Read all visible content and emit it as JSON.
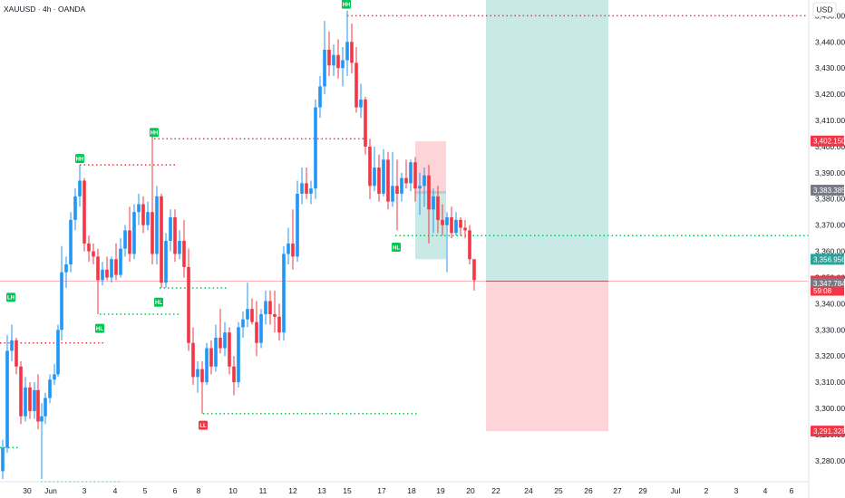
{
  "header": {
    "symbol_title": "XAUUSD · 4h · OANDA"
  },
  "currency_button": "USD",
  "chart_data": {
    "type": "candlestick",
    "title": "XAUUSD · 4h · OANDA",
    "y_axis_unit": "USD",
    "ylim": [
      3272,
      3456
    ],
    "xlim": [
      0,
      932
    ],
    "grid": false,
    "y_ticks": [
      {
        "value": 3280,
        "label": "3,280.000"
      },
      {
        "value": 3290,
        "label": "3,290.000"
      },
      {
        "value": 3300,
        "label": "3,300.000"
      },
      {
        "value": 3310,
        "label": "3,310.000"
      },
      {
        "value": 3320,
        "label": "3,320.000"
      },
      {
        "value": 3330,
        "label": "3,330.000"
      },
      {
        "value": 3340,
        "label": "3,340.000"
      },
      {
        "value": 3350,
        "label": "3,350.000"
      },
      {
        "value": 3360,
        "label": "3,360.000"
      },
      {
        "value": 3370,
        "label": "3,370.000"
      },
      {
        "value": 3380,
        "label": "3,380.000"
      },
      {
        "value": 3390,
        "label": "3,390.000"
      },
      {
        "value": 3400,
        "label": "3,400.000"
      },
      {
        "value": 3410,
        "label": "3,410.000"
      },
      {
        "value": 3420,
        "label": "3,420.000"
      },
      {
        "value": 3430,
        "label": "3,430.000"
      },
      {
        "value": 3440,
        "label": "3,440.000"
      },
      {
        "value": 3450,
        "label": "3,450.000"
      }
    ],
    "x_ticks": [
      {
        "x": 30,
        "label": "30"
      },
      {
        "x": 56,
        "label": "Jun"
      },
      {
        "x": 93,
        "label": "3"
      },
      {
        "x": 127,
        "label": "4"
      },
      {
        "x": 160,
        "label": "5"
      },
      {
        "x": 193,
        "label": "6"
      },
      {
        "x": 219,
        "label": "8"
      },
      {
        "x": 257,
        "label": "10"
      },
      {
        "x": 290,
        "label": "11"
      },
      {
        "x": 323,
        "label": "12"
      },
      {
        "x": 355,
        "label": "13"
      },
      {
        "x": 383,
        "label": "15"
      },
      {
        "x": 421,
        "label": "17"
      },
      {
        "x": 454,
        "label": "18"
      },
      {
        "x": 486,
        "label": "19"
      },
      {
        "x": 519,
        "label": "20"
      },
      {
        "x": 547,
        "label": "22"
      },
      {
        "x": 583,
        "label": "24"
      },
      {
        "x": 616,
        "label": "25"
      },
      {
        "x": 649,
        "label": "26"
      },
      {
        "x": 681,
        "label": "27"
      },
      {
        "x": 709,
        "label": "29"
      },
      {
        "x": 745,
        "label": "Jul"
      },
      {
        "x": 779,
        "label": "2"
      },
      {
        "x": 812,
        "label": "3"
      },
      {
        "x": 844,
        "label": "4"
      },
      {
        "x": 873,
        "label": "6"
      }
    ],
    "candles": [
      {
        "x": 3,
        "o": 3276,
        "h": 3288,
        "l": 3273,
        "c": 3285
      },
      {
        "x": 8,
        "o": 3285,
        "h": 3328,
        "l": 3283,
        "c": 3322
      },
      {
        "x": 13,
        "o": 3322,
        "h": 3332,
        "l": 3318,
        "c": 3326
      },
      {
        "x": 18,
        "o": 3326,
        "h": 3327,
        "l": 3313,
        "c": 3316
      },
      {
        "x": 23,
        "o": 3316,
        "h": 3318,
        "l": 3294,
        "c": 3297
      },
      {
        "x": 28,
        "o": 3297,
        "h": 3312,
        "l": 3295,
        "c": 3308
      },
      {
        "x": 33,
        "o": 3308,
        "h": 3310,
        "l": 3296,
        "c": 3299
      },
      {
        "x": 38,
        "o": 3299,
        "h": 3310,
        "l": 3296,
        "c": 3307
      },
      {
        "x": 42,
        "o": 3307,
        "h": 3313,
        "l": 3292,
        "c": 3295
      },
      {
        "x": 46,
        "o": 3295,
        "h": 3302,
        "l": 3273,
        "c": 3297
      },
      {
        "x": 50,
        "o": 3297,
        "h": 3306,
        "l": 3294,
        "c": 3304
      },
      {
        "x": 55,
        "o": 3304,
        "h": 3313,
        "l": 3302,
        "c": 3311
      },
      {
        "x": 60,
        "o": 3311,
        "h": 3317,
        "l": 3309,
        "c": 3313
      },
      {
        "x": 64,
        "o": 3313,
        "h": 3332,
        "l": 3312,
        "c": 3330
      },
      {
        "x": 68,
        "o": 3330,
        "h": 3362,
        "l": 3326,
        "c": 3352
      },
      {
        "x": 73,
        "o": 3352,
        "h": 3358,
        "l": 3346,
        "c": 3355
      },
      {
        "x": 78,
        "o": 3355,
        "h": 3375,
        "l": 3352,
        "c": 3372
      },
      {
        "x": 83,
        "o": 3372,
        "h": 3384,
        "l": 3368,
        "c": 3381
      },
      {
        "x": 88,
        "o": 3381,
        "h": 3393,
        "l": 3377,
        "c": 3387
      },
      {
        "x": 93,
        "o": 3387,
        "h": 3388,
        "l": 3360,
        "c": 3363
      },
      {
        "x": 98,
        "o": 3363,
        "h": 3366,
        "l": 3356,
        "c": 3360
      },
      {
        "x": 103,
        "o": 3360,
        "h": 3363,
        "l": 3355,
        "c": 3358
      },
      {
        "x": 108,
        "o": 3358,
        "h": 3361,
        "l": 3336,
        "c": 3349
      },
      {
        "x": 113,
        "o": 3349,
        "h": 3356,
        "l": 3347,
        "c": 3353
      },
      {
        "x": 118,
        "o": 3353,
        "h": 3358,
        "l": 3349,
        "c": 3350
      },
      {
        "x": 123,
        "o": 3350,
        "h": 3358,
        "l": 3348,
        "c": 3357
      },
      {
        "x": 128,
        "o": 3357,
        "h": 3363,
        "l": 3349,
        "c": 3351
      },
      {
        "x": 133,
        "o": 3351,
        "h": 3365,
        "l": 3350,
        "c": 3361
      },
      {
        "x": 138,
        "o": 3361,
        "h": 3370,
        "l": 3358,
        "c": 3368
      },
      {
        "x": 143,
        "o": 3368,
        "h": 3377,
        "l": 3356,
        "c": 3359
      },
      {
        "x": 148,
        "o": 3359,
        "h": 3378,
        "l": 3357,
        "c": 3375
      },
      {
        "x": 153,
        "o": 3375,
        "h": 3382,
        "l": 3370,
        "c": 3378
      },
      {
        "x": 158,
        "o": 3378,
        "h": 3381,
        "l": 3367,
        "c": 3370
      },
      {
        "x": 163,
        "o": 3370,
        "h": 3379,
        "l": 3368,
        "c": 3375
      },
      {
        "x": 168,
        "o": 3375,
        "h": 3404,
        "l": 3355,
        "c": 3359
      },
      {
        "x": 173,
        "o": 3359,
        "h": 3385,
        "l": 3355,
        "c": 3381
      },
      {
        "x": 178,
        "o": 3381,
        "h": 3382,
        "l": 3346,
        "c": 3348
      },
      {
        "x": 183,
        "o": 3348,
        "h": 3367,
        "l": 3346,
        "c": 3364
      },
      {
        "x": 188,
        "o": 3364,
        "h": 3376,
        "l": 3360,
        "c": 3373
      },
      {
        "x": 193,
        "o": 3373,
        "h": 3376,
        "l": 3356,
        "c": 3359
      },
      {
        "x": 198,
        "o": 3359,
        "h": 3368,
        "l": 3357,
        "c": 3364
      },
      {
        "x": 203,
        "o": 3364,
        "h": 3372,
        "l": 3350,
        "c": 3354
      },
      {
        "x": 208,
        "o": 3354,
        "h": 3361,
        "l": 3322,
        "c": 3325
      },
      {
        "x": 213,
        "o": 3325,
        "h": 3331,
        "l": 3309,
        "c": 3312
      },
      {
        "x": 218,
        "o": 3312,
        "h": 3318,
        "l": 3306,
        "c": 3315
      },
      {
        "x": 223,
        "o": 3315,
        "h": 3318,
        "l": 3298,
        "c": 3310
      },
      {
        "x": 228,
        "o": 3310,
        "h": 3325,
        "l": 3309,
        "c": 3323
      },
      {
        "x": 233,
        "o": 3323,
        "h": 3326,
        "l": 3313,
        "c": 3316
      },
      {
        "x": 238,
        "o": 3316,
        "h": 3332,
        "l": 3314,
        "c": 3327
      },
      {
        "x": 243,
        "o": 3327,
        "h": 3338,
        "l": 3321,
        "c": 3323
      },
      {
        "x": 248,
        "o": 3323,
        "h": 3333,
        "l": 3320,
        "c": 3329
      },
      {
        "x": 253,
        "o": 3329,
        "h": 3331,
        "l": 3313,
        "c": 3316
      },
      {
        "x": 258,
        "o": 3316,
        "h": 3320,
        "l": 3305,
        "c": 3310
      },
      {
        "x": 263,
        "o": 3310,
        "h": 3333,
        "l": 3308,
        "c": 3331
      },
      {
        "x": 268,
        "o": 3331,
        "h": 3337,
        "l": 3327,
        "c": 3334
      },
      {
        "x": 273,
        "o": 3334,
        "h": 3348,
        "l": 3331,
        "c": 3338
      },
      {
        "x": 278,
        "o": 3338,
        "h": 3342,
        "l": 3332,
        "c": 3333
      },
      {
        "x": 283,
        "o": 3333,
        "h": 3341,
        "l": 3320,
        "c": 3325
      },
      {
        "x": 288,
        "o": 3325,
        "h": 3338,
        "l": 3323,
        "c": 3336
      },
      {
        "x": 293,
        "o": 3336,
        "h": 3345,
        "l": 3332,
        "c": 3341
      },
      {
        "x": 298,
        "o": 3341,
        "h": 3345,
        "l": 3332,
        "c": 3336
      },
      {
        "x": 303,
        "o": 3336,
        "h": 3345,
        "l": 3329,
        "c": 3335
      },
      {
        "x": 308,
        "o": 3335,
        "h": 3340,
        "l": 3326,
        "c": 3329
      },
      {
        "x": 313,
        "o": 3329,
        "h": 3362,
        "l": 3326,
        "c": 3359
      },
      {
        "x": 318,
        "o": 3359,
        "h": 3369,
        "l": 3355,
        "c": 3363
      },
      {
        "x": 323,
        "o": 3363,
        "h": 3376,
        "l": 3353,
        "c": 3358
      },
      {
        "x": 328,
        "o": 3358,
        "h": 3387,
        "l": 3356,
        "c": 3382
      },
      {
        "x": 333,
        "o": 3382,
        "h": 3392,
        "l": 3378,
        "c": 3386
      },
      {
        "x": 338,
        "o": 3386,
        "h": 3392,
        "l": 3380,
        "c": 3382
      },
      {
        "x": 343,
        "o": 3382,
        "h": 3387,
        "l": 3378,
        "c": 3384
      },
      {
        "x": 348,
        "o": 3384,
        "h": 3418,
        "l": 3380,
        "c": 3415
      },
      {
        "x": 353,
        "o": 3415,
        "h": 3427,
        "l": 3411,
        "c": 3423
      },
      {
        "x": 358,
        "o": 3423,
        "h": 3448,
        "l": 3420,
        "c": 3437
      },
      {
        "x": 363,
        "o": 3437,
        "h": 3444,
        "l": 3427,
        "c": 3431
      },
      {
        "x": 368,
        "o": 3431,
        "h": 3439,
        "l": 3427,
        "c": 3435
      },
      {
        "x": 373,
        "o": 3435,
        "h": 3441,
        "l": 3426,
        "c": 3430
      },
      {
        "x": 378,
        "o": 3430,
        "h": 3438,
        "l": 3423,
        "c": 3433
      },
      {
        "x": 383,
        "o": 3433,
        "h": 3452,
        "l": 3427,
        "c": 3440
      },
      {
        "x": 388,
        "o": 3440,
        "h": 3447,
        "l": 3428,
        "c": 3432
      },
      {
        "x": 393,
        "o": 3432,
        "h": 3438,
        "l": 3413,
        "c": 3415
      },
      {
        "x": 398,
        "o": 3415,
        "h": 3424,
        "l": 3411,
        "c": 3418
      },
      {
        "x": 403,
        "o": 3418,
        "h": 3419,
        "l": 3397,
        "c": 3400
      },
      {
        "x": 408,
        "o": 3400,
        "h": 3403,
        "l": 3380,
        "c": 3385
      },
      {
        "x": 413,
        "o": 3385,
        "h": 3400,
        "l": 3383,
        "c": 3392
      },
      {
        "x": 418,
        "o": 3392,
        "h": 3397,
        "l": 3379,
        "c": 3382
      },
      {
        "x": 423,
        "o": 3382,
        "h": 3399,
        "l": 3381,
        "c": 3395
      },
      {
        "x": 428,
        "o": 3395,
        "h": 3398,
        "l": 3376,
        "c": 3379
      },
      {
        "x": 433,
        "o": 3379,
        "h": 3398,
        "l": 3377,
        "c": 3385
      },
      {
        "x": 438,
        "o": 3385,
        "h": 3395,
        "l": 3368,
        "c": 3382
      },
      {
        "x": 443,
        "o": 3382,
        "h": 3390,
        "l": 3379,
        "c": 3388
      },
      {
        "x": 448,
        "o": 3388,
        "h": 3395,
        "l": 3384,
        "c": 3386
      },
      {
        "x": 453,
        "o": 3386,
        "h": 3395,
        "l": 3383,
        "c": 3394
      },
      {
        "x": 458,
        "o": 3394,
        "h": 3396,
        "l": 3379,
        "c": 3384
      },
      {
        "x": 463,
        "o": 3384,
        "h": 3390,
        "l": 3374,
        "c": 3385
      },
      {
        "x": 468,
        "o": 3385,
        "h": 3392,
        "l": 3377,
        "c": 3389
      },
      {
        "x": 473,
        "o": 3389,
        "h": 3393,
        "l": 3363,
        "c": 3376
      },
      {
        "x": 478,
        "o": 3376,
        "h": 3384,
        "l": 3367,
        "c": 3381
      },
      {
        "x": 483,
        "o": 3381,
        "h": 3385,
        "l": 3367,
        "c": 3372
      },
      {
        "x": 488,
        "o": 3372,
        "h": 3378,
        "l": 3366,
        "c": 3370
      },
      {
        "x": 493,
        "o": 3370,
        "h": 3375,
        "l": 3352,
        "c": 3373
      },
      {
        "x": 498,
        "o": 3373,
        "h": 3377,
        "l": 3365,
        "c": 3367
      },
      {
        "x": 503,
        "o": 3367,
        "h": 3375,
        "l": 3366,
        "c": 3372
      },
      {
        "x": 508,
        "o": 3372,
        "h": 3373,
        "l": 3366,
        "c": 3369
      },
      {
        "x": 513,
        "o": 3369,
        "h": 3372,
        "l": 3365,
        "c": 3368
      },
      {
        "x": 518,
        "o": 3368,
        "h": 3370,
        "l": 3355,
        "c": 3357
      },
      {
        "x": 523,
        "o": 3357,
        "h": 3356,
        "l": 3345,
        "c": 3349
      }
    ],
    "dotted_levels": [
      {
        "x1": 0,
        "x2": 115,
        "value": 3325,
        "color": "#f23645"
      },
      {
        "x1": 88,
        "x2": 196,
        "value": 3393,
        "color": "#f23645"
      },
      {
        "x1": 170,
        "x2": 403,
        "value": 3403,
        "color": "#f23645"
      },
      {
        "x1": 383,
        "x2": 892,
        "value": 3450,
        "color": "#f23645"
      },
      {
        "x1": 0,
        "x2": 22,
        "value": 3285,
        "color": "#00c853"
      },
      {
        "x1": 45,
        "x2": 133,
        "value": 3272,
        "color": "#00c853"
      },
      {
        "x1": 110,
        "x2": 198,
        "value": 3336,
        "color": "#00c853"
      },
      {
        "x1": 176,
        "x2": 252,
        "value": 3346,
        "color": "#00c853"
      },
      {
        "x1": 224,
        "x2": 462,
        "value": 3298,
        "color": "#00c853"
      },
      {
        "x1": 436,
        "x2": 892,
        "value": 3366,
        "color": "#00c853"
      }
    ],
    "markers": [
      {
        "x": 12,
        "value": 3340,
        "label": "LH",
        "color": "#00c853",
        "pos": "above"
      },
      {
        "x": 88,
        "value": 3393,
        "label": "HH",
        "color": "#00c853",
        "pos": "above"
      },
      {
        "x": 170,
        "value": 3403,
        "label": "HH",
        "color": "#00c853",
        "pos": "above"
      },
      {
        "x": 382,
        "value": 3452,
        "label": "HH",
        "color": "#00c853",
        "pos": "above"
      },
      {
        "x": 110,
        "value": 3333,
        "label": "HL",
        "color": "#00c853",
        "pos": "below"
      },
      {
        "x": 175,
        "value": 3343,
        "label": "HL",
        "color": "#00c853",
        "pos": "below"
      },
      {
        "x": 437,
        "value": 3364,
        "label": "HL",
        "color": "#00c853",
        "pos": "below"
      },
      {
        "x": 224,
        "value": 3296,
        "label": "LL",
        "color": "#f23645",
        "pos": "below"
      }
    ],
    "zones": [
      {
        "name": "upper-target",
        "x1": 536,
        "x2": 671,
        "top": 3456,
        "bottom": 3348.6,
        "color": "#26a69a"
      },
      {
        "name": "lower-stop",
        "x1": 536,
        "x2": 671,
        "top": 3348.6,
        "bottom": 3291.3,
        "color": "#f7525f"
      },
      {
        "name": "red-small",
        "x1": 458,
        "x2": 492,
        "top": 3402,
        "bottom": 3382,
        "color": "#f7525f"
      },
      {
        "name": "green-small",
        "x1": 458,
        "x2": 492,
        "top": 3383,
        "bottom": 3357,
        "color": "#26a69a"
      }
    ],
    "current_price": {
      "value": 3348.59,
      "line_color": "#f23645"
    },
    "price_tags": [
      {
        "value": 3402.15,
        "label": "3,402.150",
        "bg": "#f23645",
        "fg": "#ffffff"
      },
      {
        "value": 3383.385,
        "label": "3,383.385",
        "bg": "#787b86",
        "fg": "#ffffff"
      },
      {
        "value": 3356.956,
        "label": "3,356.956",
        "bg": "#26a69a",
        "fg": "#ffffff"
      },
      {
        "value": 3348.59,
        "label": "3,348.590",
        "bg": "#f23645",
        "fg": "#ffffff"
      },
      {
        "value": 3347.784,
        "label": "3,347.784",
        "bg": "#787b86",
        "fg": "#ffffff"
      },
      {
        "value": 3291.328,
        "label": "3,291.328",
        "bg": "#f23645",
        "fg": "#ffffff"
      }
    ],
    "countdown": "59:08",
    "colors": {
      "up": "#2196f3",
      "down": "#f23645",
      "bg": "#ffffff",
      "text": "#131722"
    }
  }
}
